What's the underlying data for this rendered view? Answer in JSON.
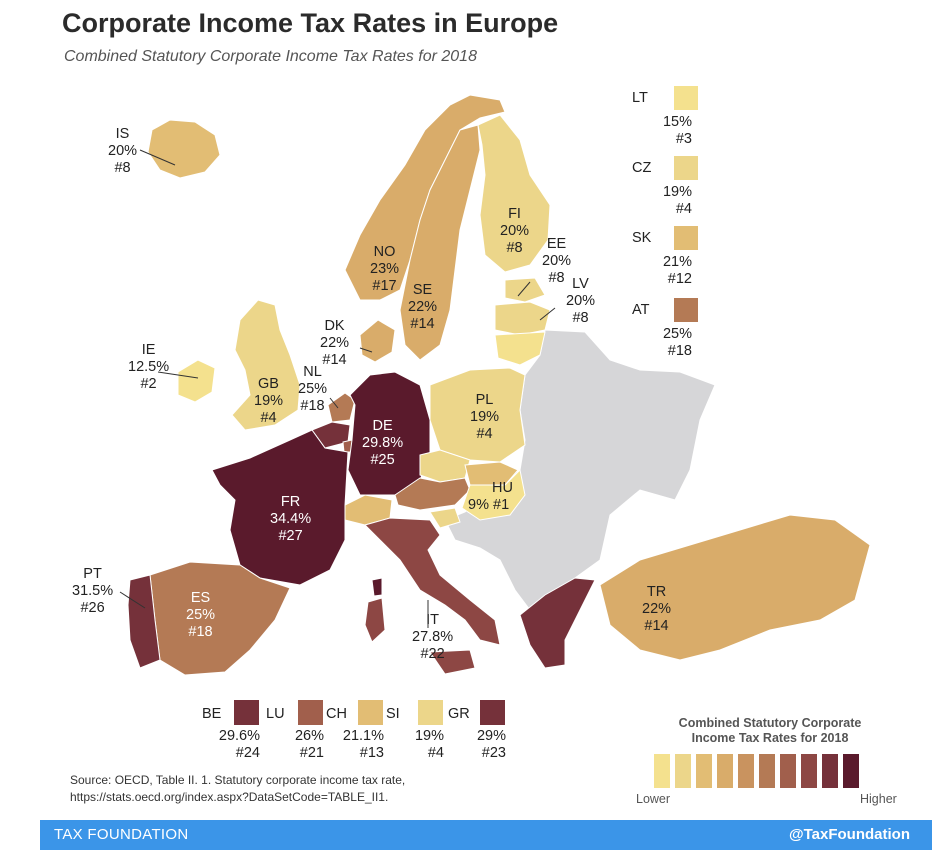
{
  "header": {
    "title": "Corporate Income Tax Rates in Europe",
    "subtitle": "Combined Statutory Corporate Income Tax Rates for 2018"
  },
  "colors": {
    "c1": "#f4e18e",
    "c2": "#ecd68a",
    "c3": "#e2bd74",
    "c4": "#d9ac6a",
    "c5": "#c9935f",
    "c6": "#b47a55",
    "c7": "#a15f4c",
    "c8": "#8d4744",
    "c9": "#75313a",
    "c10": "#5a1a2c",
    "no_data": "#d6d6d8",
    "footer_bar": "#3b95e8"
  },
  "countries": {
    "IS": {
      "code": "IS",
      "rate": "20%",
      "rank": "#8"
    },
    "FI": {
      "code": "FI",
      "rate": "20%",
      "rank": "#8"
    },
    "NO": {
      "code": "NO",
      "rate": "23%",
      "rank": "#17"
    },
    "SE": {
      "code": "SE",
      "rate": "22%",
      "rank": "#14"
    },
    "EE": {
      "code": "EE",
      "rate": "20%",
      "rank": "#8"
    },
    "LV": {
      "code": "LV",
      "rate": "20%",
      "rank": "#8"
    },
    "DK": {
      "code": "DK",
      "rate": "22%",
      "rank": "#14"
    },
    "IE": {
      "code": "IE",
      "rate": "12.5%",
      "rank": "#2"
    },
    "GB": {
      "code": "GB",
      "rate": "19%",
      "rank": "#4"
    },
    "NL": {
      "code": "NL",
      "rate": "25%",
      "rank": "#18"
    },
    "DE": {
      "code": "DE",
      "rate": "29.8%",
      "rank": "#25"
    },
    "PL": {
      "code": "PL",
      "rate": "19%",
      "rank": "#4"
    },
    "FR": {
      "code": "FR",
      "rate": "34.4%",
      "rank": "#27"
    },
    "HU": {
      "code": "HU",
      "rate": "9%",
      "rank": "#1"
    },
    "PT": {
      "code": "PT",
      "rate": "31.5%",
      "rank": "#26"
    },
    "ES": {
      "code": "ES",
      "rate": "25%",
      "rank": "#18"
    },
    "IT": {
      "code": "IT",
      "rate": "27.8%",
      "rank": "#22"
    },
    "TR": {
      "code": "TR",
      "rate": "22%",
      "rank": "#14"
    }
  },
  "side_legend": [
    {
      "code": "LT",
      "rate": "15%",
      "rank": "#3"
    },
    {
      "code": "CZ",
      "rate": "19%",
      "rank": "#4"
    },
    {
      "code": "SK",
      "rate": "21%",
      "rank": "#12"
    },
    {
      "code": "AT",
      "rate": "25%",
      "rank": "#18"
    }
  ],
  "bottom_legend": [
    {
      "code": "BE",
      "rate": "29.6%",
      "rank": "#24"
    },
    {
      "code": "LU",
      "rate": "26%",
      "rank": "#21"
    },
    {
      "code": "CH",
      "rate": "21.1%",
      "rank": "#13"
    },
    {
      "code": "SI",
      "rate": "19%",
      "rank": "#4"
    },
    {
      "code": "GR",
      "rate": "29%",
      "rank": "#23"
    }
  ],
  "scale_legend": {
    "title_line1": "Combined Statutory Corporate",
    "title_line2": "Income Tax Rates for 2018",
    "lower": "Lower",
    "higher": "Higher"
  },
  "source": {
    "line1": "Source:  OECD, Table II. 1. Statutory corporate income tax rate,",
    "line2": "https://stats.oecd.org/index.aspx?DataSetCode=TABLE_II1."
  },
  "footer": {
    "brand": "TAX FOUNDATION",
    "handle": "@TaxFoundation"
  }
}
